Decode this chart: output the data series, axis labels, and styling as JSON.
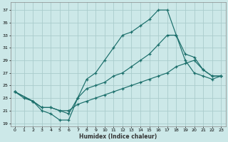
{
  "xlabel": "Humidex (Indice chaleur)",
  "ylabel": "",
  "background_color": "#cce8e8",
  "grid_color": "#aacccc",
  "line_color": "#1a6e6a",
  "xlim": [
    -0.5,
    23.5
  ],
  "ylim": [
    18.5,
    38.2
  ],
  "xticks": [
    0,
    1,
    2,
    3,
    4,
    5,
    6,
    7,
    8,
    9,
    10,
    11,
    12,
    13,
    14,
    15,
    16,
    17,
    18,
    19,
    20,
    21,
    22,
    23
  ],
  "yticks": [
    19,
    21,
    23,
    25,
    27,
    29,
    31,
    33,
    35,
    37
  ],
  "line1_x": [
    0,
    1,
    2,
    3,
    4,
    5,
    6,
    7,
    8,
    9,
    10,
    11,
    12,
    13,
    14,
    15,
    16,
    17,
    18,
    19,
    20,
    21,
    22,
    23
  ],
  "line1_y": [
    24,
    23,
    22.5,
    21,
    20.5,
    19.5,
    19.5,
    23,
    26,
    27,
    29,
    31,
    33,
    33.5,
    34.5,
    35.5,
    37,
    37,
    33,
    29,
    27,
    26.5,
    26,
    26.5
  ],
  "line2_x": [
    0,
    2,
    3,
    4,
    5,
    6,
    7,
    8,
    9,
    10,
    11,
    12,
    13,
    14,
    15,
    16,
    17,
    18,
    19,
    20,
    21,
    22,
    23
  ],
  "line2_y": [
    24,
    22.5,
    21.5,
    21.5,
    21,
    20.5,
    23,
    24.5,
    25,
    25.5,
    26.5,
    27,
    28,
    29,
    30,
    31.5,
    33,
    33,
    30,
    29.5,
    27.5,
    26.5,
    26.5
  ],
  "line3_x": [
    0,
    2,
    3,
    4,
    5,
    6,
    7,
    8,
    9,
    10,
    11,
    12,
    13,
    14,
    15,
    16,
    17,
    18,
    19,
    20,
    21,
    22,
    23
  ],
  "line3_y": [
    24,
    22.5,
    21.5,
    21.5,
    21,
    21,
    22,
    22.5,
    23,
    23.5,
    24,
    24.5,
    25,
    25.5,
    26,
    26.5,
    27,
    28,
    28.5,
    29,
    27.5,
    26.5,
    26.5
  ]
}
